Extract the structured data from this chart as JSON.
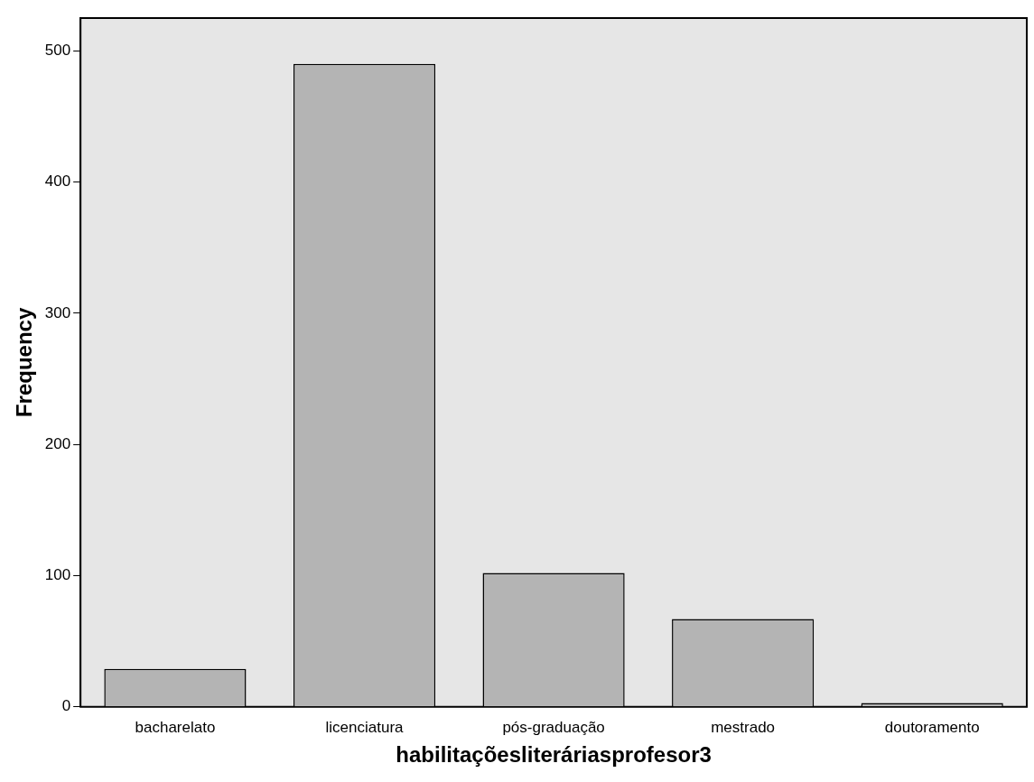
{
  "chart_data": {
    "type": "bar",
    "xlabel": "habilitaçõesliteráriasprofesor3",
    "ylabel": "Frequency",
    "categories": [
      "bacharelato",
      "licenciatura",
      "pós-graduação",
      "mestrado",
      "doutoramento"
    ],
    "values": [
      29,
      490,
      102,
      67,
      3
    ],
    "color": "#b4b4b4",
    "ylim": [
      0,
      525
    ],
    "yticks": [
      0,
      100,
      200,
      300,
      400,
      500
    ],
    "grid": false
  }
}
